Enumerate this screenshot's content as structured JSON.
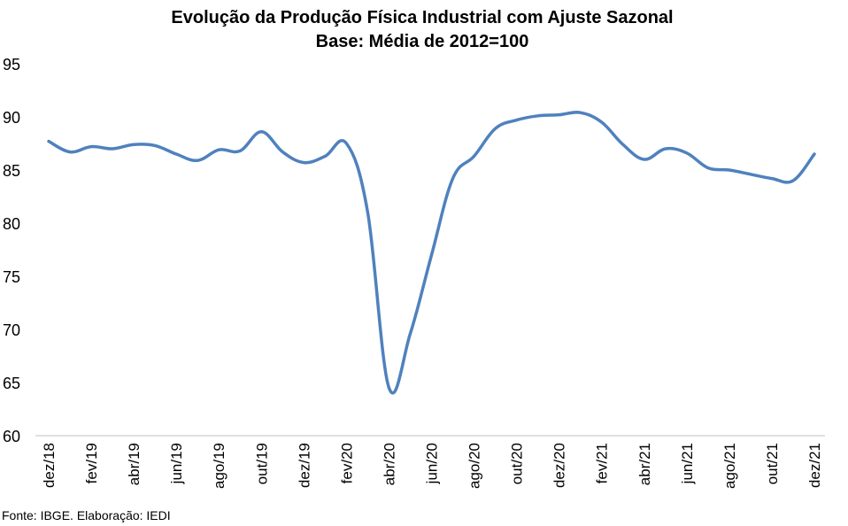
{
  "chart_data": {
    "type": "line",
    "title": "Evolução da Produção Física Industrial com Ajuste Sazonal",
    "subtitle": "Base: Média de 2012=100",
    "xlabel": "",
    "ylabel": "",
    "ylim": [
      60,
      95
    ],
    "yticks": [
      "60",
      "65",
      "70",
      "75",
      "80",
      "85",
      "90",
      "95"
    ],
    "x_tick_labels": [
      "dez/18",
      "fev/19",
      "abr/19",
      "jun/19",
      "ago/19",
      "out/19",
      "dez/19",
      "fev/20",
      "abr/20",
      "jun/20",
      "ago/20",
      "out/20",
      "dez/20",
      "fev/21",
      "abr/21",
      "jun/21",
      "ago/21",
      "out/21",
      "dez/21"
    ],
    "categories": [
      "dez/18",
      "jan/19",
      "fev/19",
      "mar/19",
      "abr/19",
      "mai/19",
      "jun/19",
      "jul/19",
      "ago/19",
      "set/19",
      "out/19",
      "nov/19",
      "dez/19",
      "jan/20",
      "fev/20",
      "mar/20",
      "abr/20",
      "mai/20",
      "jun/20",
      "jul/20",
      "ago/20",
      "set/20",
      "out/20",
      "nov/20",
      "dez/20",
      "jan/21",
      "fev/21",
      "mar/21",
      "abr/21",
      "mai/21",
      "jun/21",
      "jul/21",
      "ago/21",
      "set/21",
      "out/21",
      "nov/21",
      "dez/21"
    ],
    "series": [
      {
        "color": "#4F81BD",
        "values": [
          87.7,
          86.7,
          87.2,
          87.0,
          87.4,
          87.3,
          86.5,
          85.9,
          86.9,
          86.8,
          88.6,
          86.7,
          85.7,
          86.3,
          87.5,
          81.0,
          64.5,
          69.6,
          77.0,
          84.2,
          86.3,
          88.9,
          89.7,
          90.1,
          90.2,
          90.4,
          89.5,
          87.4,
          86.0,
          87.0,
          86.6,
          85.2,
          85.0,
          84.6,
          84.2,
          84.0,
          86.5
        ]
      }
    ],
    "grid": false,
    "legend": "none"
  },
  "source_text": "Fonte: IBGE. Elaboração: IEDI"
}
